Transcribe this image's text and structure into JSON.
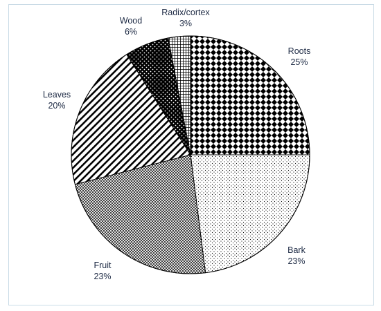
{
  "chart_data": {
    "type": "pie",
    "title": "",
    "slices": [
      {
        "label": "Roots",
        "value": 25,
        "value_label": "25%",
        "pattern": "diamond-checker"
      },
      {
        "label": "Bark",
        "value": 23,
        "value_label": "23%",
        "pattern": "fine-dots"
      },
      {
        "label": "Fruit",
        "value": 23,
        "value_label": "23%",
        "pattern": "crosshatch"
      },
      {
        "label": "Leaves",
        "value": 20,
        "value_label": "20%",
        "pattern": "diagonal-stripes"
      },
      {
        "label": "Wood",
        "value": 6,
        "value_label": "6%",
        "pattern": "black-with-white-dots"
      },
      {
        "label": "Radix/cortex",
        "value": 3,
        "value_label": "3%",
        "pattern": "grid"
      }
    ],
    "start_angle": "12 o'clock",
    "direction": "clockwise",
    "colors": {
      "ink": "#000000",
      "label": "#1d2a44",
      "frame": "#c9dbe6"
    }
  }
}
